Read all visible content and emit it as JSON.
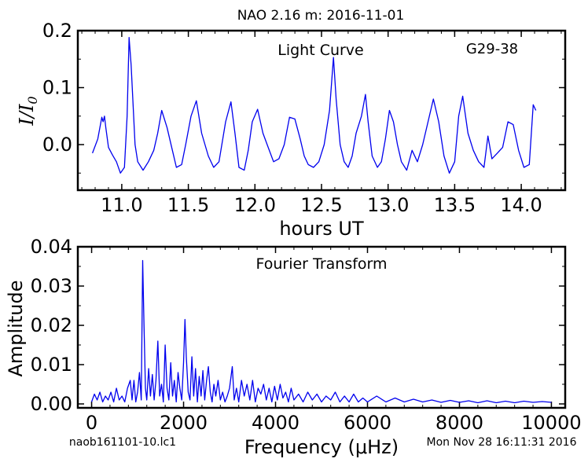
{
  "figure_title": "NAO 2.16 m:  2016-11-01",
  "footer": {
    "filename": "naob161101-10.lc1",
    "timestamp": "Mon Nov 28 16:11:31 2016"
  },
  "chart_data": [
    {
      "type": "line",
      "title": "Light Curve",
      "annotation": "G29-38",
      "xlabel": "hours UT",
      "ylabel": "I/I0",
      "xlim": [
        10.67,
        14.33
      ],
      "ylim": [
        -0.08,
        0.2
      ],
      "xticks": [
        "11.0",
        "11.5",
        "12.0",
        "12.5",
        "13.0",
        "13.5",
        "14.0"
      ],
      "xtick_values": [
        11.0,
        11.5,
        12.0,
        12.5,
        13.0,
        13.5,
        14.0
      ],
      "yticks": [
        "0.0",
        "0.1",
        "0.2"
      ],
      "ytick_values": [
        0.0,
        0.1,
        0.2
      ],
      "color": "#0000ee",
      "grid": false,
      "x": [
        10.78,
        10.82,
        10.85,
        10.86,
        10.87,
        10.88,
        10.9,
        10.93,
        10.96,
        10.99,
        11.02,
        11.04,
        11.055,
        11.07,
        11.1,
        11.12,
        11.16,
        11.2,
        11.24,
        11.27,
        11.3,
        11.34,
        11.38,
        11.41,
        11.45,
        11.48,
        11.52,
        11.56,
        11.6,
        11.65,
        11.69,
        11.73,
        11.78,
        11.82,
        11.85,
        11.88,
        11.92,
        11.95,
        11.98,
        12.02,
        12.06,
        12.1,
        12.14,
        12.18,
        12.22,
        12.26,
        12.3,
        12.34,
        12.37,
        12.4,
        12.44,
        12.48,
        12.52,
        12.56,
        12.59,
        12.61,
        12.64,
        12.67,
        12.7,
        12.73,
        12.76,
        12.8,
        12.83,
        12.85,
        12.88,
        12.92,
        12.95,
        12.98,
        13.01,
        13.04,
        13.07,
        13.1,
        13.14,
        13.18,
        13.22,
        13.26,
        13.3,
        13.34,
        13.38,
        13.42,
        13.46,
        13.5,
        13.53,
        13.56,
        13.6,
        13.64,
        13.68,
        13.72,
        13.75,
        13.78,
        13.82,
        13.86,
        13.9,
        13.94,
        13.98,
        14.02,
        14.06,
        14.09,
        14.11
      ],
      "y": [
        -0.015,
        0.01,
        0.048,
        0.04,
        0.05,
        0.03,
        -0.005,
        -0.018,
        -0.03,
        -0.05,
        -0.04,
        0.05,
        0.188,
        0.14,
        0.0,
        -0.03,
        -0.045,
        -0.03,
        -0.01,
        0.02,
        0.06,
        0.03,
        -0.01,
        -0.04,
        -0.035,
        0.0,
        0.05,
        0.077,
        0.02,
        -0.02,
        -0.04,
        -0.03,
        0.04,
        0.075,
        0.02,
        -0.04,
        -0.045,
        -0.01,
        0.04,
        0.062,
        0.02,
        -0.005,
        -0.03,
        -0.025,
        0.0,
        0.048,
        0.045,
        0.01,
        -0.02,
        -0.035,
        -0.04,
        -0.03,
        0.0,
        0.06,
        0.153,
        0.08,
        0.0,
        -0.03,
        -0.04,
        -0.02,
        0.02,
        0.05,
        0.088,
        0.04,
        -0.02,
        -0.04,
        -0.03,
        0.01,
        0.06,
        0.04,
        0.0,
        -0.03,
        -0.045,
        -0.01,
        -0.03,
        0.0,
        0.04,
        0.08,
        0.04,
        -0.02,
        -0.05,
        -0.03,
        0.05,
        0.085,
        0.02,
        -0.01,
        -0.03,
        -0.04,
        0.015,
        -0.025,
        -0.015,
        -0.005,
        0.04,
        0.035,
        -0.01,
        -0.04,
        -0.035,
        0.07,
        0.06
      ]
    },
    {
      "type": "line",
      "title": "Fourier Transform",
      "xlabel": "Frequency (μHz)",
      "ylabel": "Amplitude",
      "xlim": [
        -300,
        10300
      ],
      "ylim": [
        -0.001,
        0.04
      ],
      "xticks": [
        "0",
        "2000",
        "4000",
        "6000",
        "8000",
        "10000"
      ],
      "xtick_values": [
        0,
        2000,
        4000,
        6000,
        8000,
        10000
      ],
      "yticks": [
        "0.00",
        "0.01",
        "0.02",
        "0.03",
        "0.04"
      ],
      "ytick_values": [
        0.0,
        0.01,
        0.02,
        0.03,
        0.04
      ],
      "color": "#0000ee",
      "grid": false,
      "x": [
        0,
        60,
        120,
        180,
        240,
        300,
        360,
        420,
        480,
        540,
        600,
        660,
        720,
        780,
        840,
        880,
        920,
        960,
        1000,
        1040,
        1080,
        1110,
        1140,
        1170,
        1200,
        1240,
        1280,
        1320,
        1360,
        1400,
        1440,
        1480,
        1520,
        1560,
        1600,
        1640,
        1680,
        1720,
        1760,
        1800,
        1840,
        1880,
        1920,
        1960,
        2000,
        2030,
        2060,
        2100,
        2140,
        2180,
        2220,
        2260,
        2300,
        2340,
        2380,
        2420,
        2460,
        2500,
        2540,
        2580,
        2620,
        2660,
        2700,
        2750,
        2800,
        2850,
        2900,
        2950,
        3000,
        3060,
        3100,
        3150,
        3200,
        3260,
        3320,
        3380,
        3440,
        3500,
        3560,
        3620,
        3680,
        3740,
        3800,
        3860,
        3920,
        3980,
        4040,
        4100,
        4160,
        4220,
        4280,
        4340,
        4400,
        4500,
        4600,
        4700,
        4800,
        4900,
        5000,
        5100,
        5200,
        5300,
        5400,
        5500,
        5600,
        5700,
        5800,
        5900,
        6000,
        6200,
        6400,
        6600,
        6800,
        7000,
        7200,
        7400,
        7600,
        7800,
        8000,
        8200,
        8400,
        8600,
        8800,
        9000,
        9200,
        9400,
        9600,
        9800,
        10000
      ],
      "y": [
        0.0005,
        0.0025,
        0.001,
        0.003,
        0.0005,
        0.002,
        0.001,
        0.003,
        0.0005,
        0.004,
        0.001,
        0.002,
        0.0005,
        0.004,
        0.006,
        0.001,
        0.006,
        0.0005,
        0.003,
        0.008,
        0.001,
        0.0365,
        0.02,
        0.004,
        0.001,
        0.009,
        0.002,
        0.0075,
        0.001,
        0.006,
        0.016,
        0.002,
        0.005,
        0.0005,
        0.015,
        0.004,
        0.001,
        0.0105,
        0.002,
        0.006,
        0.0005,
        0.008,
        0.004,
        0.001,
        0.0105,
        0.0215,
        0.012,
        0.003,
        0.001,
        0.012,
        0.002,
        0.009,
        0.0005,
        0.007,
        0.002,
        0.0085,
        0.001,
        0.006,
        0.0095,
        0.003,
        0.0005,
        0.005,
        0.002,
        0.006,
        0.001,
        0.003,
        0.0005,
        0.002,
        0.004,
        0.0095,
        0.001,
        0.004,
        0.0005,
        0.006,
        0.002,
        0.005,
        0.001,
        0.006,
        0.0005,
        0.004,
        0.0025,
        0.005,
        0.001,
        0.004,
        0.0005,
        0.0045,
        0.001,
        0.005,
        0.0015,
        0.003,
        0.0005,
        0.004,
        0.001,
        0.0025,
        0.0005,
        0.003,
        0.001,
        0.0025,
        0.0005,
        0.002,
        0.001,
        0.003,
        0.0005,
        0.002,
        0.0005,
        0.0025,
        0.0005,
        0.0015,
        0.0005,
        0.002,
        0.0005,
        0.0015,
        0.0005,
        0.0012,
        0.0005,
        0.001,
        0.0004,
        0.0009,
        0.0004,
        0.0008,
        0.0003,
        0.0008,
        0.0003,
        0.0007,
        0.0003,
        0.0007,
        0.0004,
        0.0006,
        0.0004
      ]
    }
  ]
}
